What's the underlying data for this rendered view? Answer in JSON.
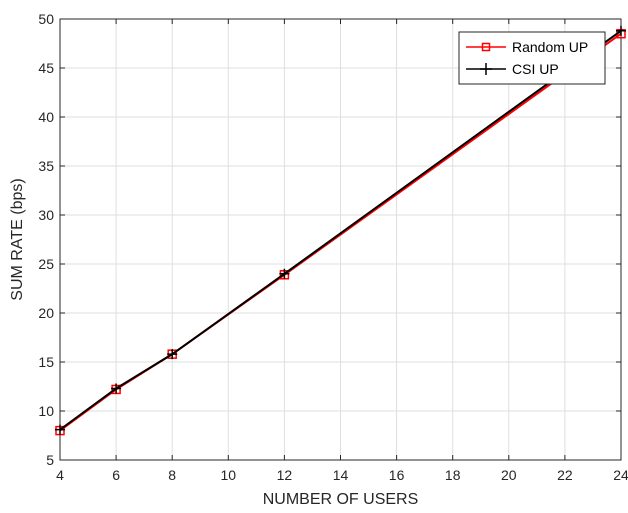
{
  "chart_data": {
    "type": "line",
    "xlabel": "NUMBER OF USERS",
    "ylabel": "SUM RATE (bps)",
    "xlim": [
      4,
      24
    ],
    "ylim": [
      5,
      50
    ],
    "xticks": [
      4,
      6,
      8,
      10,
      12,
      14,
      16,
      18,
      20,
      22,
      24
    ],
    "yticks": [
      5,
      10,
      15,
      20,
      25,
      30,
      35,
      40,
      45,
      50
    ],
    "grid": true,
    "legend_position": "top-right",
    "series": [
      {
        "name": "Random UP",
        "color": "#ff0000",
        "marker": "square",
        "x": [
          4,
          6,
          8,
          12,
          24
        ],
        "y": [
          8.0,
          12.2,
          15.8,
          23.9,
          48.5
        ]
      },
      {
        "name": "CSI UP",
        "color": "#000000",
        "marker": "plus",
        "x": [
          4,
          6,
          8,
          12,
          24
        ],
        "y": [
          8.1,
          12.3,
          15.8,
          24.0,
          48.8
        ]
      }
    ]
  }
}
